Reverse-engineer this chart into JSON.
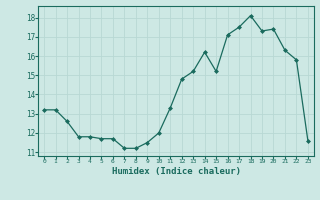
{
  "x": [
    0,
    1,
    2,
    3,
    4,
    5,
    6,
    7,
    8,
    9,
    10,
    11,
    12,
    13,
    14,
    15,
    16,
    17,
    18,
    19,
    20,
    21,
    22,
    23
  ],
  "y": [
    13.2,
    13.2,
    12.6,
    11.8,
    11.8,
    11.7,
    11.7,
    11.2,
    11.2,
    11.5,
    12.0,
    13.3,
    14.8,
    15.2,
    16.2,
    15.2,
    17.1,
    17.5,
    18.1,
    17.3,
    17.4,
    16.3,
    15.8,
    11.6
  ],
  "ylim": [
    10.8,
    18.6
  ],
  "xlim": [
    -0.5,
    23.5
  ],
  "yticks": [
    11,
    12,
    13,
    14,
    15,
    16,
    17,
    18
  ],
  "xticks": [
    0,
    1,
    2,
    3,
    4,
    5,
    6,
    7,
    8,
    9,
    10,
    11,
    12,
    13,
    14,
    15,
    16,
    17,
    18,
    19,
    20,
    21,
    22,
    23
  ],
  "xlabel": "Humidex (Indice chaleur)",
  "line_color": "#1a6b5e",
  "bg_color": "#cde8e4",
  "grid_color": "#b8d8d4",
  "tick_color": "#1a6b5e",
  "label_color": "#1a6b5e"
}
